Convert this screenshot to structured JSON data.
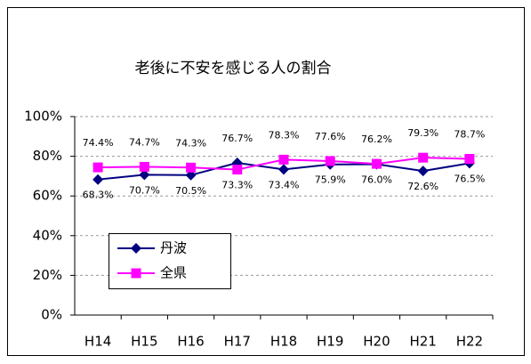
{
  "chart_data": {
    "type": "line",
    "title": "老後に不安を感じる人の割合",
    "categories": [
      "H14",
      "H15",
      "H16",
      "H17",
      "H18",
      "H19",
      "H20",
      "H21",
      "H22"
    ],
    "series": [
      {
        "name": "丹波",
        "color": "#000080",
        "marker": "diamond",
        "values": [
          68.3,
          70.7,
          70.5,
          76.7,
          73.4,
          75.9,
          76.0,
          72.6,
          76.5
        ],
        "value_labels": [
          "68.3%",
          "70.7%",
          "70.5%",
          "76.7%",
          "73.4%",
          "75.9%",
          "76.0%",
          "72.6%",
          "76.5%"
        ]
      },
      {
        "name": "全県",
        "color": "#ff00ff",
        "marker": "square",
        "values": [
          74.4,
          74.7,
          74.3,
          73.3,
          78.3,
          77.6,
          76.2,
          79.3,
          78.7
        ],
        "value_labels": [
          "74.4%",
          "74.7%",
          "74.3%",
          "73.3%",
          "78.3%",
          "77.6%",
          "76.2%",
          "79.3%",
          "78.7%"
        ]
      }
    ],
    "ylim": [
      0,
      100
    ],
    "yticks": [
      {
        "value": 0,
        "label": "0%"
      },
      {
        "value": 20,
        "label": "20%"
      },
      {
        "value": 40,
        "label": "40%"
      },
      {
        "value": 60,
        "label": "60%"
      },
      {
        "value": 80,
        "label": "80%"
      },
      {
        "value": 100,
        "label": "100%"
      }
    ],
    "grid": true,
    "legend": "lower left"
  }
}
